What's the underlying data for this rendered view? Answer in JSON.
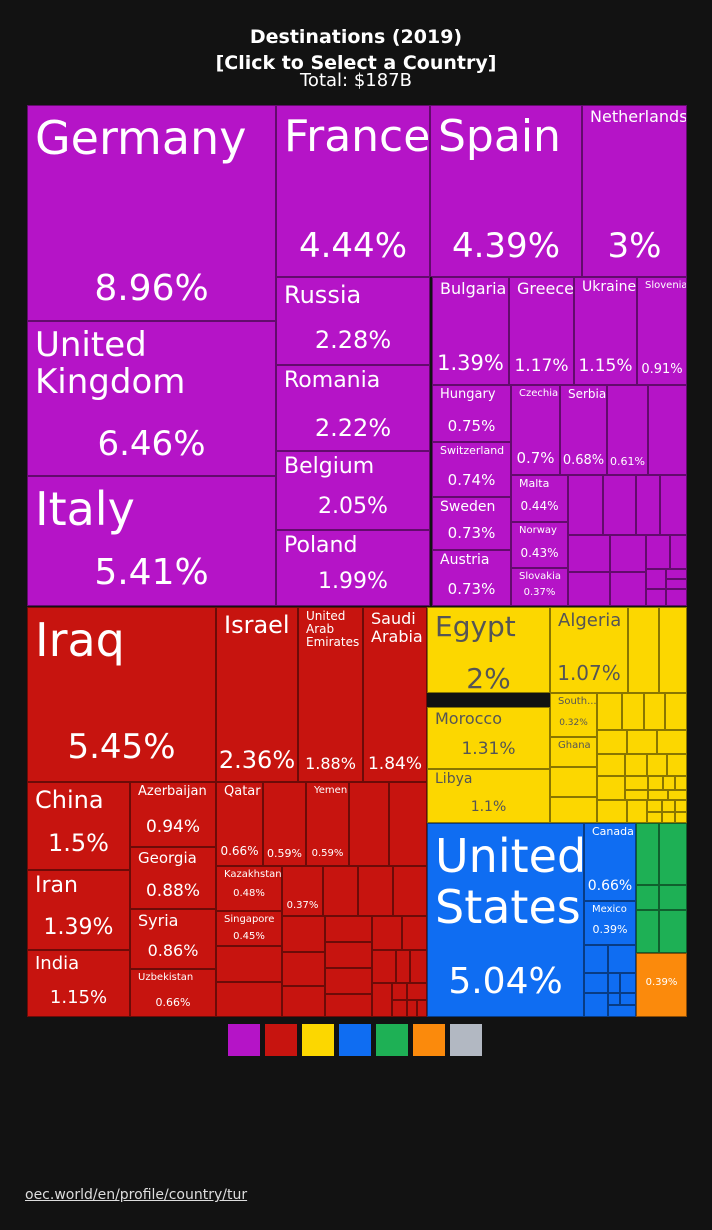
{
  "header": {
    "title_line1": "Destinations (2019)",
    "title_line2": "[Click to Select a Country]",
    "total": "Total: $187B"
  },
  "footer": {
    "link": "oec.world/en/profile/country/tur"
  },
  "colors": {
    "europe": "#b514c7",
    "asia": "#c7140f",
    "africa": "#fcd700",
    "north_america": "#0f6df2",
    "south_america": "#1eb055",
    "oceania": "#fb8a0c",
    "other": "#b2b8c2"
  },
  "chart_data": {
    "type": "treemap",
    "title": "Destinations (2019)",
    "subtitle": "[Click to Select a Country]",
    "total": "Total: $187B",
    "legend": [
      "europe",
      "asia",
      "africa",
      "north_america",
      "south_america",
      "oceania",
      "other"
    ],
    "labeled_tiles": [
      {
        "name": "Germany",
        "share": "8.96%",
        "region": "europe"
      },
      {
        "name": "France",
        "share": "4.44%",
        "region": "europe"
      },
      {
        "name": "Spain",
        "share": "4.39%",
        "region": "europe"
      },
      {
        "name": "Netherlands",
        "share": "3%",
        "region": "europe"
      },
      {
        "name": "United Kingdom",
        "share": "6.46%",
        "region": "europe"
      },
      {
        "name": "Italy",
        "share": "5.41%",
        "region": "europe"
      },
      {
        "name": "Russia",
        "share": "2.28%",
        "region": "europe"
      },
      {
        "name": "Romania",
        "share": "2.22%",
        "region": "europe"
      },
      {
        "name": "Belgium",
        "share": "2.05%",
        "region": "europe"
      },
      {
        "name": "Poland",
        "share": "1.99%",
        "region": "europe"
      },
      {
        "name": "Bulgaria",
        "share": "1.39%",
        "region": "europe"
      },
      {
        "name": "Greece",
        "share": "1.17%",
        "region": "europe"
      },
      {
        "name": "Ukraine",
        "share": "1.15%",
        "region": "europe"
      },
      {
        "name": "Slovenia",
        "share": "0.91%",
        "region": "europe"
      },
      {
        "name": "Hungary",
        "share": "0.75%",
        "region": "europe"
      },
      {
        "name": "Czechia",
        "share": "0.7%",
        "region": "europe"
      },
      {
        "name": "Serbia",
        "share": "0.68%",
        "region": "europe"
      },
      {
        "name": "",
        "share": "0.61%",
        "region": "europe"
      },
      {
        "name": "Switzerland",
        "share": "0.74%",
        "region": "europe"
      },
      {
        "name": "Malta",
        "share": "0.44%",
        "region": "europe"
      },
      {
        "name": "Sweden",
        "share": "0.73%",
        "region": "europe"
      },
      {
        "name": "Norway",
        "share": "0.43%",
        "region": "europe"
      },
      {
        "name": "Austria",
        "share": "0.73%",
        "region": "europe"
      },
      {
        "name": "Slovakia",
        "share": "0.37%",
        "region": "europe"
      },
      {
        "name": "Iraq",
        "share": "5.45%",
        "region": "asia"
      },
      {
        "name": "Israel",
        "share": "2.36%",
        "region": "asia"
      },
      {
        "name": "United Arab Emirates",
        "share": "1.88%",
        "region": "asia"
      },
      {
        "name": "Saudi Arabia",
        "share": "1.84%",
        "region": "asia"
      },
      {
        "name": "China",
        "share": "1.5%",
        "region": "asia"
      },
      {
        "name": "Azerbaijan",
        "share": "0.94%",
        "region": "asia"
      },
      {
        "name": "Qatar",
        "share": "0.66%",
        "region": "asia"
      },
      {
        "name": "",
        "share": "0.59%",
        "region": "asia"
      },
      {
        "name": "Yemen",
        "share": "0.59%",
        "region": "asia"
      },
      {
        "name": "Georgia",
        "share": "0.88%",
        "region": "asia"
      },
      {
        "name": "Iran",
        "share": "1.39%",
        "region": "asia"
      },
      {
        "name": "Kazakhstan",
        "share": "0.48%",
        "region": "asia"
      },
      {
        "name": "",
        "share": "0.37%",
        "region": "asia"
      },
      {
        "name": "Syria",
        "share": "0.86%",
        "region": "asia"
      },
      {
        "name": "Singapore",
        "share": "0.45%",
        "region": "asia"
      },
      {
        "name": "India",
        "share": "1.15%",
        "region": "asia"
      },
      {
        "name": "Uzbekistan",
        "share": "0.66%",
        "region": "asia"
      },
      {
        "name": "Egypt",
        "share": "2%",
        "region": "africa"
      },
      {
        "name": "Algeria",
        "share": "1.07%",
        "region": "africa"
      },
      {
        "name": "Morocco",
        "share": "1.31%",
        "region": "africa"
      },
      {
        "name": "South...",
        "share": "0.32%",
        "region": "africa"
      },
      {
        "name": "Ghana",
        "share": "",
        "region": "africa"
      },
      {
        "name": "Libya",
        "share": "1.1%",
        "region": "africa"
      },
      {
        "name": "United States",
        "share": "5.04%",
        "region": "north_america"
      },
      {
        "name": "Canada",
        "share": "0.66%",
        "region": "north_america"
      },
      {
        "name": "Mexico",
        "share": "0.39%",
        "region": "north_america"
      },
      {
        "name": "",
        "share": "0.39%",
        "region": "oceania"
      }
    ]
  }
}
